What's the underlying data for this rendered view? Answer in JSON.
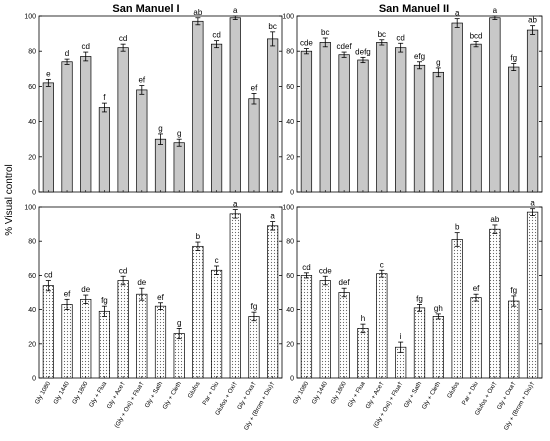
{
  "figure": {
    "ylabel": "% Visual control",
    "panel_titles": [
      "San Manuel I",
      "San Manuel II"
    ],
    "categories": [
      "Gly 1080",
      "Gly 1440",
      "Gly 1800",
      "Gly + Flua",
      "Gly + Ace†",
      "(Gly + Oxi) + Flua†",
      "Gly + Sath",
      "Gly + Cleth",
      "Glufos",
      "Par + Diu",
      "Glufos + Oxi†",
      "Gly + Oxa†",
      "Gly + (Brom + Diu)†"
    ]
  },
  "chart_data": [
    {
      "type": "bar",
      "title": "San Manuel I",
      "ylabel": "% Visual control",
      "ylim": [
        0,
        100
      ],
      "yticks": [
        0,
        20,
        40,
        60,
        80,
        100
      ],
      "categories": [
        "Gly 1080",
        "Gly 1440",
        "Gly 1800",
        "Gly + Flua",
        "Gly + Ace†",
        "(Gly + Oxi) + Flua†",
        "Gly + Sath",
        "Gly + Cleth",
        "Glufos",
        "Par + Diu",
        "Glufos + Oxi†",
        "Gly + Oxa†",
        "Gly + (Brom + Diu)†"
      ],
      "values": [
        62,
        74,
        77,
        48,
        82,
        58,
        30,
        28,
        97,
        84,
        99,
        53,
        87
      ],
      "errors": [
        2,
        1.5,
        2.5,
        2.5,
        2,
        2.5,
        3,
        2,
        2,
        2,
        1,
        3,
        4
      ],
      "letters": [
        "e",
        "d",
        "cd",
        "f",
        "cd",
        "ef",
        "g",
        "g",
        "ab",
        "cd",
        "a",
        "ef",
        "bc"
      ],
      "fill": "#c8c8c8",
      "grid": false
    },
    {
      "type": "bar",
      "title": "San Manuel II",
      "ylim": [
        0,
        100
      ],
      "yticks": [
        0,
        20,
        40,
        60,
        80,
        100
      ],
      "categories": [
        "Gly 1080",
        "Gly 1440",
        "Gly 1800",
        "Gly + Flua",
        "Gly + Ace†",
        "(Gly + Oxi) + Flua†",
        "Gly + Sath",
        "Gly + Cleth",
        "Glufos",
        "Par + Diu",
        "Glufos + Oxi†",
        "Gly + Oxa†",
        "Gly + (Brom + Diu)†"
      ],
      "values": [
        80,
        85,
        78,
        75,
        85,
        82,
        72,
        68,
        96,
        84,
        99,
        71,
        92
      ],
      "errors": [
        1.5,
        2.5,
        1.5,
        1.5,
        1.5,
        2.5,
        2,
        2.5,
        2.5,
        1.5,
        1,
        2,
        2.5
      ],
      "letters": [
        "cde",
        "bc",
        "cdef",
        "defg",
        "bc",
        "cd",
        "efg",
        "g",
        "a",
        "bcd",
        "a",
        "fg",
        "ab"
      ],
      "fill": "#c8c8c8",
      "grid": false
    },
    {
      "type": "bar",
      "ylabel": "% Visual control",
      "ylim": [
        0,
        100
      ],
      "yticks": [
        0,
        20,
        40,
        60,
        80,
        100
      ],
      "categories": [
        "Gly 1080",
        "Gly 1440",
        "Gly 1800",
        "Gly + Flua",
        "Gly + Ace†",
        "(Gly + Oxi) + Flua†",
        "Gly + Sath",
        "Gly + Cleth",
        "Glufos",
        "Par + Diu",
        "Glufos + Oxi†",
        "Gly + Oxa†",
        "Gly + (Brom + Diu)†"
      ],
      "values": [
        54,
        43,
        46,
        39,
        57,
        49,
        42,
        26,
        77,
        63,
        96,
        36,
        89
      ],
      "errors": [
        3,
        3,
        2.5,
        3,
        2.5,
        3.5,
        2,
        3,
        2.5,
        2.5,
        2.5,
        2.5,
        2.5
      ],
      "letters": [
        "cd",
        "ef",
        "de",
        "fg",
        "cd",
        "de",
        "ef",
        "g",
        "b",
        "c",
        "a",
        "fg",
        "a"
      ],
      "fill": "dotted",
      "grid": false
    },
    {
      "type": "bar",
      "ylim": [
        0,
        100
      ],
      "yticks": [
        0,
        20,
        40,
        60,
        80,
        100
      ],
      "categories": [
        "Gly 1080",
        "Gly 1440",
        "Gly 1800",
        "Gly + Flua",
        "Gly + Ace†",
        "(Gly + Oxi) + Flua†",
        "Gly + Sath",
        "Gly + Cleth",
        "Glufos",
        "Par + Diu",
        "Glufos + Oxi†",
        "Gly + Oxa†",
        "Gly + (Brom + Diu)†"
      ],
      "values": [
        60,
        57,
        50,
        29,
        61,
        18,
        41,
        36,
        81,
        47,
        87,
        45,
        97
      ],
      "errors": [
        1.5,
        2.5,
        2.5,
        2.5,
        2,
        3,
        2,
        1.5,
        4,
        2,
        2.5,
        3,
        2
      ],
      "letters": [
        "cd",
        "cde",
        "def",
        "h",
        "c",
        "i",
        "fg",
        "gh",
        "b",
        "ef",
        "ab",
        "fg",
        "a"
      ],
      "fill": "dotted",
      "grid": false
    }
  ]
}
